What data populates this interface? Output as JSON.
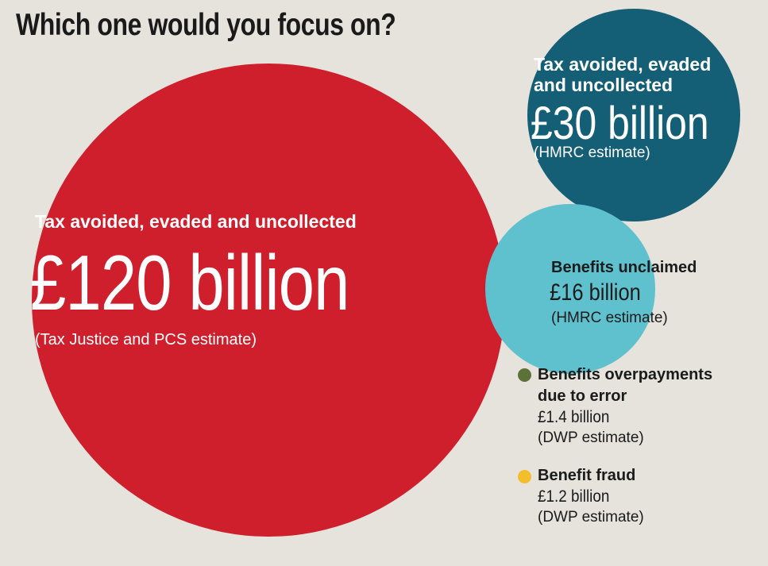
{
  "title": "Which one would you focus on?",
  "colors": {
    "background": "#e6e2dc",
    "tax_120": "#cf1f2d",
    "tax_30": "#155f76",
    "benefits_unclaimed": "#5fc1ce",
    "overpayments": "#5d7238",
    "fraud": "#f4bd2b"
  },
  "chart_data": {
    "type": "bubble",
    "title": "Which one would you focus on?",
    "unit": "£ billion",
    "items": [
      {
        "label": "Tax avoided, evaded and uncollected",
        "value": 120,
        "value_text": "£120 billion",
        "source": "(Tax Justice and PCS estimate)",
        "color": "#cf1f2d"
      },
      {
        "label": "Tax avoided, evaded and uncollected",
        "value": 30,
        "value_text": "£30 billion",
        "source": "(HMRC estimate)",
        "color": "#155f76"
      },
      {
        "label": "Benefits unclaimed",
        "value": 16,
        "value_text": "£16 billion",
        "source": "(HMRC estimate)",
        "color": "#5fc1ce"
      },
      {
        "label": "Benefits overpayments due to error",
        "value": 1.4,
        "value_text": "£1.4 billion",
        "source": "(DWP estimate)",
        "color": "#5d7238"
      },
      {
        "label": "Benefit fraud",
        "value": 1.2,
        "value_text": "£1.2 billion",
        "source": "(DWP estimate)",
        "color": "#f4bd2b"
      }
    ]
  },
  "labels": {
    "red": {
      "heading": "Tax avoided, evaded and uncollected",
      "value": "£120 billion",
      "source": "(Tax Justice and PCS estimate)"
    },
    "teal": {
      "heading_line1": "Tax avoided, evaded",
      "heading_line2": "and uncollected",
      "value": "£30 billion",
      "source": "(HMRC estimate)"
    },
    "cyan": {
      "heading": "Benefits unclaimed",
      "value": "£16 billion",
      "source": "(HMRC estimate)"
    },
    "overpay": {
      "heading_line1": "Benefits overpayments",
      "heading_line2": "due to error",
      "value": "£1.4 billion",
      "source": "(DWP estimate)"
    },
    "fraud": {
      "heading": "Benefit fraud",
      "value": "£1.2 billion",
      "source": "(DWP estimate)"
    }
  }
}
